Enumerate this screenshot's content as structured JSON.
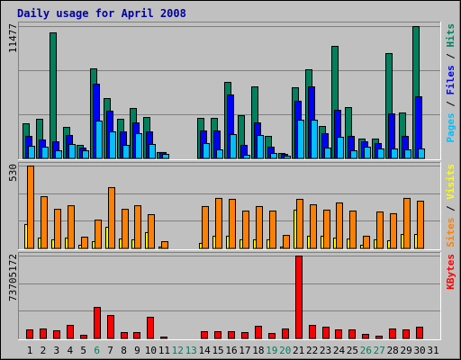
{
  "title": "Daily usage for April 2008",
  "legend_separator": " / ",
  "chart_data": [
    {
      "type": "bar",
      "ylim": [
        0,
        11477
      ],
      "yticks": [
        11477
      ],
      "series": [
        {
          "name": "Pages",
          "color": "#00c0ff",
          "values": [
            1090,
            1015,
            700,
            1250,
            700,
            3280,
            2340,
            1170,
            2185,
            1250,
            390,
            0,
            0,
            1330,
            780,
            2105,
            310,
            2030,
            470,
            235,
            3355,
            3355,
            935,
            1875,
            700,
            1015,
            860,
            860,
            780,
            860,
            0
          ]
        },
        {
          "name": "Files",
          "color": "#0000ff",
          "values": [
            1950,
            1640,
            1480,
            2030,
            935,
            6480,
            4140,
            2340,
            3120,
            2340,
            550,
            0,
            0,
            2420,
            2420,
            5540,
            1170,
            3120,
            1015,
            390,
            5000,
            6245,
            2185,
            4215,
            1950,
            1480,
            1330,
            3900,
            1950,
            5385,
            0
          ]
        },
        {
          "name": "Hits",
          "color": "#00805c",
          "values": [
            3045,
            3435,
            10930,
            2730,
            1170,
            7810,
            5230,
            3435,
            4370,
            3590,
            550,
            0,
            0,
            3515,
            3515,
            6635,
            3750,
            6245,
            1950,
            470,
            6170,
            7730,
            2810,
            9760,
            4450,
            1720,
            1720,
            9135,
            3980,
            11477,
            0
          ]
        }
      ]
    },
    {
      "type": "bar",
      "ylim": [
        0,
        530
      ],
      "yticks": [
        530
      ],
      "series": [
        {
          "name": "Sites",
          "color": "#ff8000",
          "values": [
            530,
            334,
            253,
            276,
            75,
            184,
            392,
            253,
            276,
            219,
            46,
            0,
            0,
            271,
            323,
            317,
            242,
            271,
            242,
            86,
            317,
            282,
            248,
            294,
            242,
            81,
            236,
            225,
            323,
            305,
            0
          ]
        },
        {
          "name": "Visits",
          "color": "#ffff00",
          "values": [
            156,
            69,
            58,
            69,
            23,
            46,
            138,
            63,
            58,
            104,
            12,
            0,
            0,
            35,
            81,
            81,
            58,
            58,
            58,
            12,
            248,
            81,
            81,
            69,
            63,
            23,
            58,
            52,
            92,
            92,
            0
          ]
        }
      ]
    },
    {
      "type": "bar",
      "ylim": [
        0,
        73705172
      ],
      "yticks": [
        73705172
      ],
      "categories": [
        "1",
        "2",
        "3",
        "4",
        "5",
        "6",
        "7",
        "8",
        "9",
        "10",
        "11",
        "12",
        "13",
        "14",
        "15",
        "16",
        "17",
        "18",
        "19",
        "20",
        "21",
        "22",
        "23",
        "24",
        "25",
        "26",
        "27",
        "28",
        "29",
        "30",
        "31"
      ],
      "weekend_indices": [
        5,
        11,
        12,
        18,
        19,
        25,
        26
      ],
      "weekend_color": "#00805c",
      "series": [
        {
          "name": "KBytes",
          "color": "#ff0000",
          "values": [
            8000000,
            8800000,
            7200000,
            12000000,
            3200000,
            28000000,
            20800000,
            5600000,
            5600000,
            19200000,
            1600000,
            0,
            0,
            6400000,
            6400000,
            6400000,
            5600000,
            11200000,
            4800000,
            8800000,
            73705172,
            12000000,
            10400000,
            8000000,
            8000000,
            4000000,
            2400000,
            8800000,
            8000000,
            10400000,
            0
          ]
        }
      ]
    }
  ]
}
